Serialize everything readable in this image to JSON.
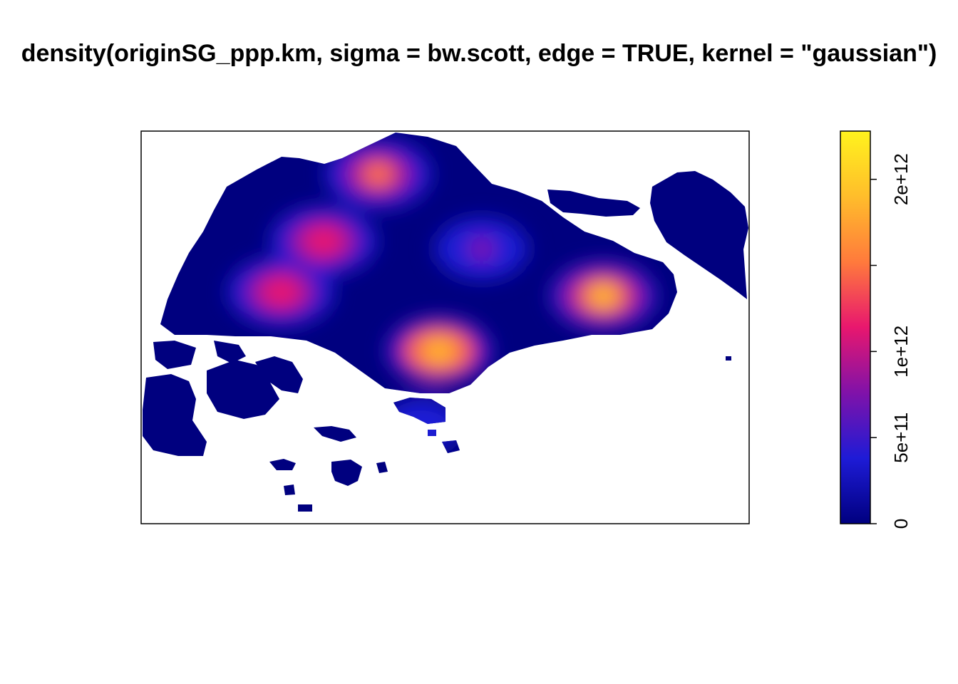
{
  "chart_data": {
    "type": "heatmap",
    "title": "density(originSG_ppp.km, sigma = bw.scott, edge = TRUE, kernel = \"gaussian\")",
    "xlabel": "",
    "ylabel": "",
    "colorbar": {
      "ticks": [
        {
          "value": 0,
          "label": "0"
        },
        {
          "value": 500000000000,
          "label": "5e+11"
        },
        {
          "value": 1000000000000,
          "label": "1e+12"
        },
        {
          "value": 1500000000000,
          "label": ""
        },
        {
          "value": 2000000000000,
          "label": "2e+12"
        }
      ],
      "range": [
        0,
        2000000000000
      ],
      "colors": [
        "#00007f",
        "#1e1bd6",
        "#8012a9",
        "#e8176e",
        "#ff7a3c",
        "#ffbd2b",
        "#fff31d"
      ],
      "position": "right"
    },
    "background_color": "#00007f",
    "hotspots": [
      {
        "x": 0.49,
        "y": 0.56,
        "peak": 2000000000000
      },
      {
        "x": 0.76,
        "y": 0.42,
        "peak": 1850000000000
      },
      {
        "x": 0.23,
        "y": 0.41,
        "peak": 1300000000000
      },
      {
        "x": 0.39,
        "y": 0.11,
        "peak": 1400000000000
      },
      {
        "x": 0.3,
        "y": 0.28,
        "peak": 1150000000000
      },
      {
        "x": 0.56,
        "y": 0.3,
        "peak": 600000000000
      },
      {
        "x": 0.46,
        "y": 0.75,
        "peak": 550000000000
      }
    ],
    "grid": false,
    "axes": false
  }
}
